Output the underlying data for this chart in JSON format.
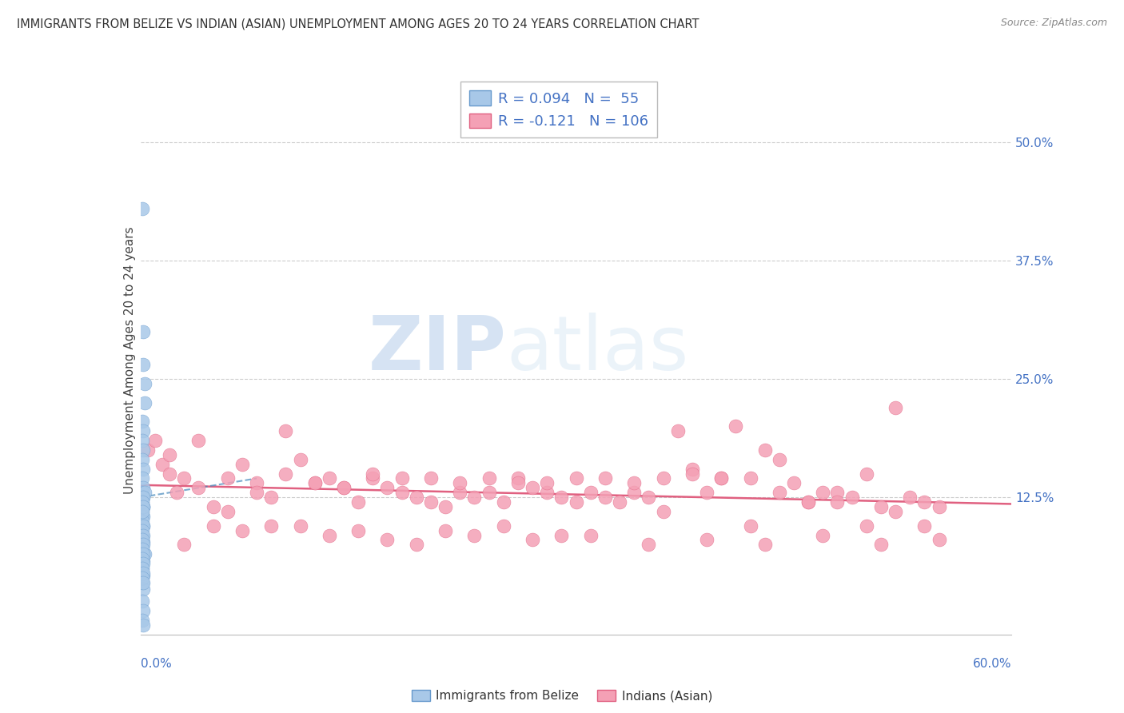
{
  "title": "IMMIGRANTS FROM BELIZE VS INDIAN (ASIAN) UNEMPLOYMENT AMONG AGES 20 TO 24 YEARS CORRELATION CHART",
  "source": "Source: ZipAtlas.com",
  "ylabel": "Unemployment Among Ages 20 to 24 years",
  "xlim": [
    0.0,
    0.6
  ],
  "ylim": [
    -0.02,
    0.56
  ],
  "ytick_positions": [
    0.125,
    0.25,
    0.375,
    0.5
  ],
  "ytick_labels": [
    "12.5%",
    "25.0%",
    "37.5%",
    "50.0%"
  ],
  "belize_color": "#a8c8e8",
  "belize_edge_color": "#6699cc",
  "indian_color": "#f4a0b5",
  "indian_edge_color": "#e06080",
  "belize_trend_color": "#4488bb",
  "indian_trend_color": "#e06080",
  "belize_R": 0.094,
  "belize_N": 55,
  "indian_R": -0.121,
  "indian_N": 106,
  "legend_label_belize": "Immigrants from Belize",
  "legend_label_indian": "Indians (Asian)",
  "watermark_zip": "ZIP",
  "watermark_atlas": "atlas",
  "background_color": "#ffffff",
  "grid_color": "#cccccc",
  "belize_scatter_x": [
    0.001,
    0.002,
    0.002,
    0.003,
    0.003,
    0.001,
    0.002,
    0.001,
    0.002,
    0.001,
    0.002,
    0.001,
    0.002,
    0.001,
    0.002,
    0.001,
    0.002,
    0.001,
    0.002,
    0.001,
    0.003,
    0.002,
    0.001,
    0.002,
    0.001,
    0.002,
    0.001,
    0.002,
    0.001,
    0.002,
    0.001,
    0.002,
    0.001,
    0.002,
    0.001,
    0.002,
    0.001,
    0.002,
    0.001,
    0.002,
    0.001,
    0.002,
    0.001,
    0.002,
    0.001,
    0.002,
    0.001,
    0.002,
    0.001,
    0.002,
    0.003,
    0.002,
    0.001,
    0.002,
    0.001
  ],
  "belize_scatter_y": [
    0.43,
    0.3,
    0.265,
    0.245,
    0.225,
    0.205,
    0.195,
    0.185,
    0.175,
    0.165,
    0.155,
    0.145,
    0.135,
    0.125,
    0.115,
    0.105,
    0.095,
    0.085,
    0.078,
    0.072,
    0.065,
    0.058,
    0.05,
    0.042,
    0.035,
    0.028,
    0.015,
    0.005,
    -0.005,
    -0.01,
    0.13,
    0.125,
    0.12,
    0.115,
    0.11,
    0.105,
    0.1,
    0.095,
    0.09,
    0.085,
    0.08,
    0.075,
    0.07,
    0.065,
    0.06,
    0.055,
    0.05,
    0.045,
    0.04,
    0.035,
    0.13,
    0.125,
    0.12,
    0.115,
    0.11
  ],
  "indian_scatter_x": [
    0.005,
    0.01,
    0.015,
    0.02,
    0.025,
    0.03,
    0.04,
    0.05,
    0.06,
    0.07,
    0.08,
    0.09,
    0.1,
    0.11,
    0.12,
    0.13,
    0.14,
    0.15,
    0.16,
    0.17,
    0.18,
    0.19,
    0.2,
    0.21,
    0.22,
    0.23,
    0.24,
    0.25,
    0.26,
    0.27,
    0.28,
    0.29,
    0.3,
    0.31,
    0.32,
    0.33,
    0.34,
    0.35,
    0.36,
    0.37,
    0.38,
    0.39,
    0.4,
    0.41,
    0.42,
    0.43,
    0.44,
    0.45,
    0.46,
    0.47,
    0.48,
    0.49,
    0.5,
    0.51,
    0.52,
    0.53,
    0.54,
    0.55,
    0.02,
    0.04,
    0.06,
    0.08,
    0.1,
    0.12,
    0.14,
    0.16,
    0.18,
    0.2,
    0.22,
    0.24,
    0.26,
    0.28,
    0.3,
    0.32,
    0.34,
    0.36,
    0.38,
    0.4,
    0.42,
    0.44,
    0.46,
    0.48,
    0.5,
    0.52,
    0.54,
    0.03,
    0.07,
    0.11,
    0.15,
    0.19,
    0.23,
    0.27,
    0.31,
    0.35,
    0.39,
    0.43,
    0.47,
    0.51,
    0.55,
    0.05,
    0.09,
    0.13,
    0.17,
    0.21,
    0.25,
    0.29
  ],
  "indian_scatter_y": [
    0.175,
    0.185,
    0.16,
    0.15,
    0.13,
    0.145,
    0.135,
    0.115,
    0.11,
    0.16,
    0.14,
    0.125,
    0.195,
    0.165,
    0.14,
    0.145,
    0.135,
    0.12,
    0.145,
    0.135,
    0.13,
    0.125,
    0.12,
    0.115,
    0.13,
    0.125,
    0.13,
    0.12,
    0.145,
    0.135,
    0.13,
    0.125,
    0.12,
    0.13,
    0.125,
    0.12,
    0.13,
    0.125,
    0.11,
    0.195,
    0.155,
    0.13,
    0.145,
    0.2,
    0.145,
    0.175,
    0.165,
    0.14,
    0.12,
    0.13,
    0.13,
    0.125,
    0.15,
    0.115,
    0.11,
    0.125,
    0.12,
    0.115,
    0.17,
    0.185,
    0.145,
    0.13,
    0.15,
    0.14,
    0.135,
    0.15,
    0.145,
    0.145,
    0.14,
    0.145,
    0.14,
    0.14,
    0.145,
    0.145,
    0.14,
    0.145,
    0.15,
    0.145,
    0.095,
    0.13,
    0.12,
    0.12,
    0.095,
    0.22,
    0.095,
    0.075,
    0.09,
    0.095,
    0.09,
    0.075,
    0.085,
    0.08,
    0.085,
    0.075,
    0.08,
    0.075,
    0.085,
    0.075,
    0.08,
    0.095,
    0.095,
    0.085,
    0.08,
    0.09,
    0.095,
    0.085
  ],
  "belize_trend_x": [
    0.0,
    0.08
  ],
  "belize_trend_y": [
    0.125,
    0.145
  ],
  "indian_trend_x": [
    0.0,
    0.6
  ],
  "indian_trend_y": [
    0.138,
    0.118
  ]
}
